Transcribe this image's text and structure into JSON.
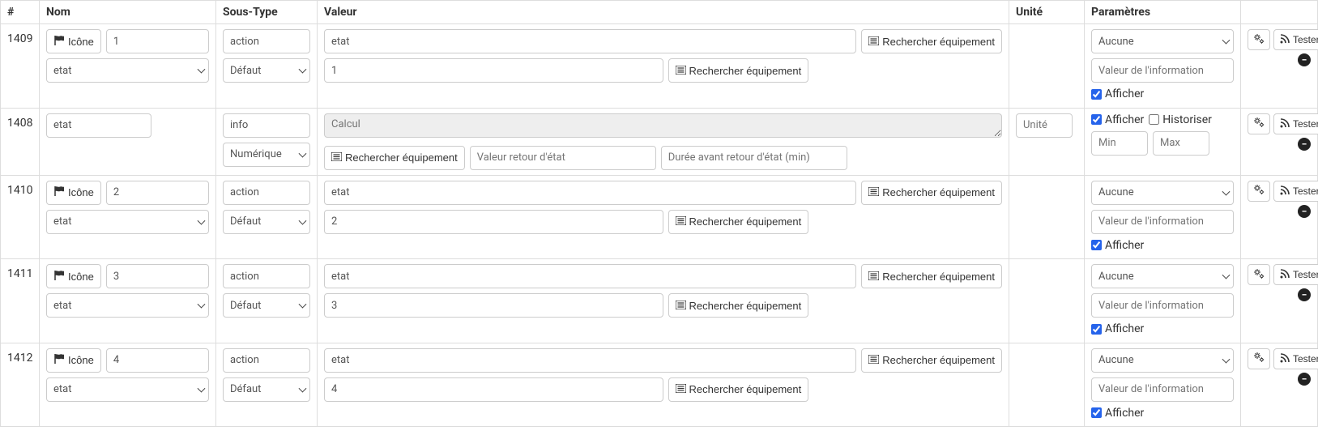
{
  "headers": {
    "num": "#",
    "nom": "Nom",
    "stype": "Sous-Type",
    "val": "Valeur",
    "unit": "Unité",
    "param": "Paramètres"
  },
  "labels": {
    "icone": "Icône",
    "rech_equip": "Rechercher équipement",
    "tester": "Tester",
    "afficher": "Afficher",
    "historiser": "Historiser"
  },
  "placeholders": {
    "calcul": "Calcul",
    "val_retour": "Valeur retour d'état",
    "duree_retour": "Durée avant retour d'état (min)",
    "val_info": "Valeur de l'information",
    "min": "Min",
    "max": "Max",
    "unite": "Unité"
  },
  "selects": {
    "defaut": "Défaut",
    "numerique": "Numérique",
    "aucune": "Aucune",
    "etat": "etat"
  },
  "rows": [
    {
      "id": "1409",
      "type": "action",
      "nom": {
        "num": "1",
        "sel": "etat"
      },
      "stype": {
        "kind": "action",
        "sel": "Défaut"
      },
      "val": {
        "top": "etat",
        "bot": "1"
      },
      "param": {
        "sel": "Aucune",
        "afficher": true
      }
    },
    {
      "id": "1408",
      "type": "info",
      "nom": {
        "text": "etat"
      },
      "stype": {
        "kind": "info",
        "sel": "Numérique"
      },
      "val": {
        "calcul": ""
      },
      "unit": "",
      "param": {
        "afficher": true,
        "historiser": false,
        "min": "",
        "max": ""
      }
    },
    {
      "id": "1410",
      "type": "action",
      "nom": {
        "num": "2",
        "sel": "etat"
      },
      "stype": {
        "kind": "action",
        "sel": "Défaut"
      },
      "val": {
        "top": "etat",
        "bot": "2"
      },
      "param": {
        "sel": "Aucune",
        "afficher": true
      }
    },
    {
      "id": "1411",
      "type": "action",
      "nom": {
        "num": "3",
        "sel": "etat"
      },
      "stype": {
        "kind": "action",
        "sel": "Défaut"
      },
      "val": {
        "top": "etat",
        "bot": "3"
      },
      "param": {
        "sel": "Aucune",
        "afficher": true
      }
    },
    {
      "id": "1412",
      "type": "action",
      "nom": {
        "num": "4",
        "sel": "etat"
      },
      "stype": {
        "kind": "action",
        "sel": "Défaut"
      },
      "val": {
        "top": "etat",
        "bot": "4"
      },
      "param": {
        "sel": "Aucune",
        "afficher": true
      }
    }
  ]
}
